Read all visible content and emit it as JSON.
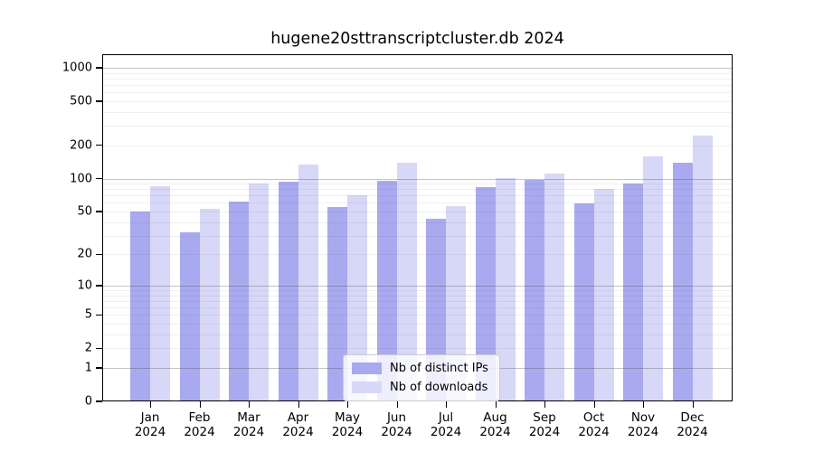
{
  "title": "hugene20sttranscriptcluster.db 2024",
  "legend": {
    "items": [
      {
        "label": "Nb of distinct IPs",
        "color": "#a9a9f0"
      },
      {
        "label": "Nb of downloads",
        "color": "#d7d7f7"
      }
    ]
  },
  "chart_data": {
    "type": "bar",
    "title": "hugene20sttranscriptcluster.db 2024",
    "categories": [
      "Jan",
      "Feb",
      "Mar",
      "Apr",
      "May",
      "Jun",
      "Jul",
      "Aug",
      "Sep",
      "Oct",
      "Nov",
      "Dec"
    ],
    "x_year": "2024",
    "series": [
      {
        "name": "Nb of distinct IPs",
        "color": "#a9a9f0",
        "values": [
          50,
          32,
          62,
          93,
          55,
          95,
          43,
          84,
          97,
          59,
          91,
          139
        ]
      },
      {
        "name": "Nb of downloads",
        "color": "#d7d7f7",
        "values": [
          85,
          53,
          90,
          134,
          70,
          140,
          56,
          101,
          112,
          81,
          160,
          246
        ]
      }
    ],
    "yscale": "log10(1+x)",
    "yticks": [
      0,
      1,
      2,
      5,
      10,
      20,
      50,
      100,
      200,
      500,
      1000
    ],
    "ylim": [
      0,
      1300
    ],
    "grid": true,
    "legend_position": "lower center"
  }
}
